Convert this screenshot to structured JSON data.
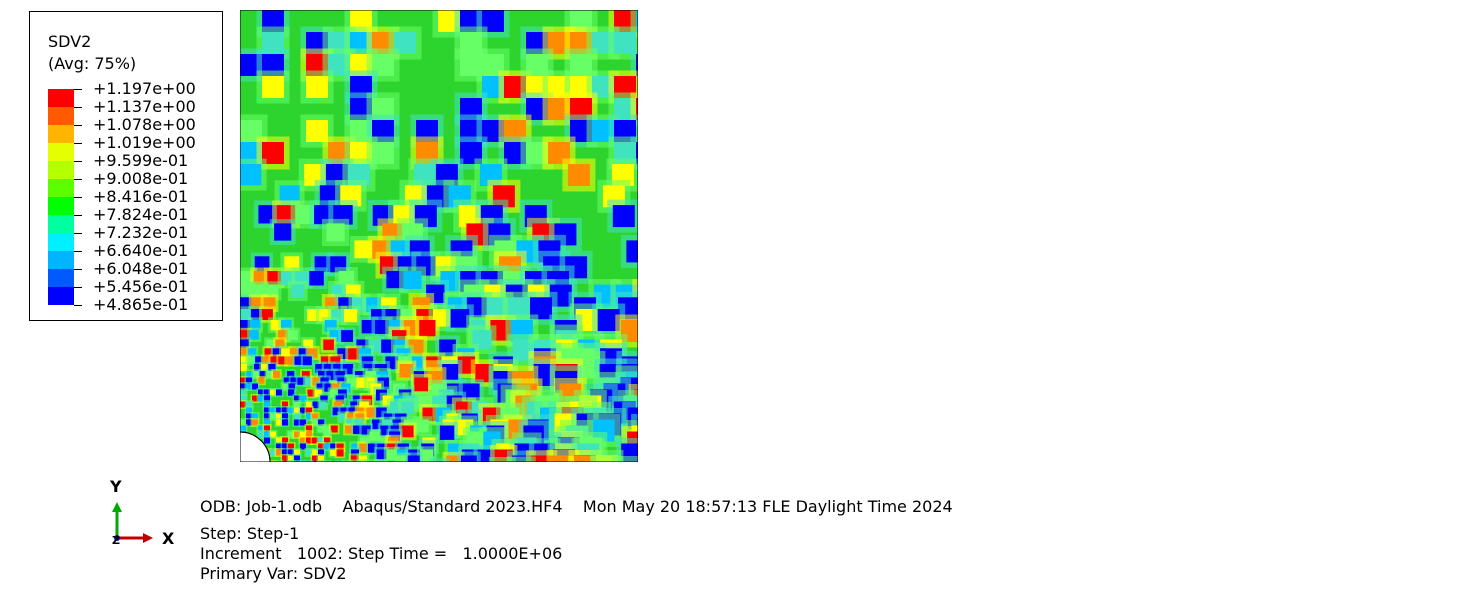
{
  "legend": {
    "variable": "SDV2",
    "averaging": "(Avg: 75%)",
    "levels": [
      {
        "label": "+1.197e+00",
        "color": "#ff0000"
      },
      {
        "label": "+1.137e+00",
        "color": "#ff5a00"
      },
      {
        "label": "+1.078e+00",
        "color": "#ffb400"
      },
      {
        "label": "+1.019e+00",
        "color": "#e6ff00"
      },
      {
        "label": "+9.599e-01",
        "color": "#b4ff00"
      },
      {
        "label": "+9.008e-01",
        "color": "#5aff00"
      },
      {
        "label": "+8.416e-01",
        "color": "#00ff00"
      },
      {
        "label": "+7.824e-01",
        "color": "#00ffa0"
      },
      {
        "label": "+7.232e-01",
        "color": "#00f0ff"
      },
      {
        "label": "+6.640e-01",
        "color": "#00b4ff"
      },
      {
        "label": "+6.048e-01",
        "color": "#005aff"
      },
      {
        "label": "+5.456e-01",
        "color": "#0000ff"
      },
      {
        "label": "+4.865e-01",
        "color": null
      }
    ]
  },
  "plot_palette": {
    "red": "#ff0000",
    "orange": "#ff8c00",
    "yellow": "#ffff00",
    "green": "#2ed42e",
    "lightgreen": "#66ff66",
    "cyan": "#3fe3c0",
    "lightblue": "#00c0ff",
    "blue": "#0000ff",
    "background": "#2ed42e"
  },
  "triad": {
    "y_label": "Y",
    "x_label": "X",
    "z_label": "Z",
    "y_color": "#00aa00",
    "x_color": "#c00000",
    "z_color": "#0000c0"
  },
  "info": {
    "odb_line": "ODB: Job-1.odb    Abaqus/Standard 2023.HF4    Mon May 20 18:57:13 FLE Daylight Time 2024",
    "step_line": "Step: Step-1",
    "increment_line": "Increment   1002: Step Time =   1.0000E+06",
    "primary_var_line": "Primary Var: SDV2"
  }
}
